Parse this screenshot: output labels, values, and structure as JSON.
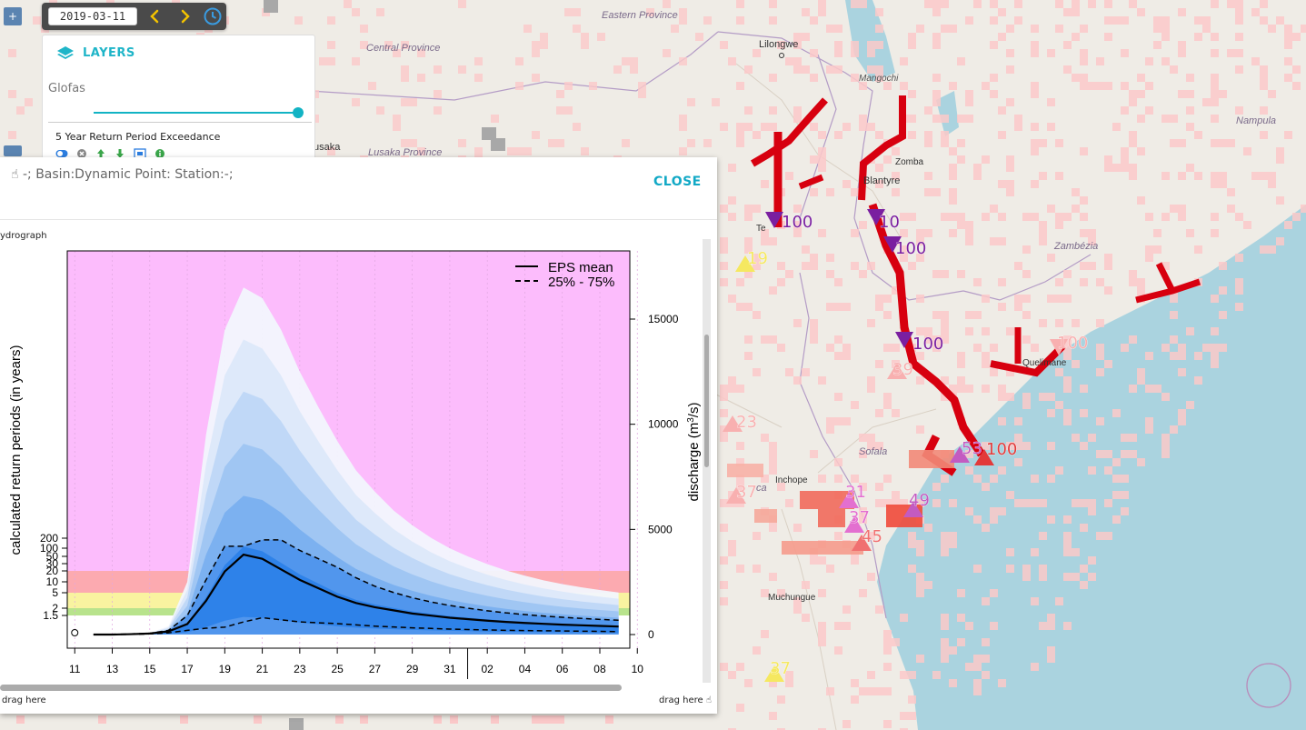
{
  "toolbar": {
    "date": "2019-03-11"
  },
  "layers_panel": {
    "title": "LAYERS",
    "group": "Glofas",
    "slider_value": 1.0,
    "layer_name": "5 Year Return Period Exceedance",
    "tool_icons": [
      "toggle-icon",
      "remove-icon",
      "move-up-icon",
      "move-down-icon",
      "zoom-extent-icon",
      "info-icon"
    ]
  },
  "map": {
    "places": [
      {
        "name": "Lilongwe",
        "key": "lilongwe"
      },
      {
        "name": "Mangochi",
        "key": "mangochi"
      },
      {
        "name": "Eastern Province",
        "key": "eastern"
      },
      {
        "name": "Central Province",
        "key": "central"
      },
      {
        "name": "Lusaka Province",
        "key": "lusaka_prov"
      },
      {
        "name": "usaka",
        "key": "lusaka"
      },
      {
        "name": "Zomba",
        "key": "zomba"
      },
      {
        "name": "Blantyre",
        "key": "blantyre"
      },
      {
        "name": "Nampula",
        "key": "nampula"
      },
      {
        "name": "Zambézia",
        "key": "zambezia"
      },
      {
        "name": "Quelimane",
        "key": "quelimane"
      },
      {
        "name": "Sofala",
        "key": "sofala"
      },
      {
        "name": "Inchope",
        "key": "inchope"
      },
      {
        "name": "Muchungue",
        "key": "muchungue"
      },
      {
        "name": "Te",
        "key": "tete"
      },
      {
        "name": "ca",
        "key": "manica"
      }
    ],
    "markers": [
      {
        "label": "100",
        "color": "#7a1fa0",
        "shape": "down",
        "key": "m1"
      },
      {
        "label": "10",
        "color": "#7a1fa0",
        "shape": "down",
        "key": "m2"
      },
      {
        "label": "100",
        "color": "#7a1fa0",
        "shape": "down",
        "key": "m3"
      },
      {
        "label": "100",
        "color": "#7a1fa0",
        "shape": "down",
        "key": "m4"
      },
      {
        "label": "100",
        "color": "#e23a3a",
        "shape": "up",
        "key": "m5"
      },
      {
        "label": "53",
        "color": "#c35bc1",
        "shape": "up",
        "key": "m6"
      },
      {
        "label": "49",
        "color": "#c35bc1",
        "shape": "up",
        "key": "m7"
      },
      {
        "label": "31",
        "color": "#e36fd0",
        "shape": "up",
        "key": "m8"
      },
      {
        "label": "37",
        "color": "#e36fd0",
        "shape": "up",
        "key": "m9"
      },
      {
        "label": "45",
        "color": "#f07070",
        "shape": "up",
        "key": "m10"
      },
      {
        "label": "19",
        "color": "#f5e860",
        "shape": "up",
        "key": "m11"
      },
      {
        "label": "37",
        "color": "#f5e860",
        "shape": "up",
        "key": "m12"
      },
      {
        "label": "23",
        "color": "#f8b0b0",
        "shape": "up",
        "key": "m13"
      },
      {
        "label": "37",
        "color": "#f8b0b0",
        "shape": "up",
        "key": "m14"
      },
      {
        "label": "39",
        "color": "#f8b0b0",
        "shape": "up",
        "key": "m15"
      },
      {
        "label": "100",
        "color": "#f8b0b0",
        "shape": "down",
        "key": "m16"
      }
    ],
    "colors": {
      "land": "#efece6",
      "sea": "#aad3df",
      "exceed_red": "#d7000f",
      "exceed_light": "#fbc9c9"
    }
  },
  "popup": {
    "title": "-; Basin:Dynamic Point: Station:-;",
    "close_label": "CLOSE",
    "drag_left": "drag here",
    "drag_right": "drag here",
    "corner_label": "ydrograph"
  },
  "chart_data": {
    "type": "area",
    "x_ticks": [
      "11",
      "13",
      "15",
      "17",
      "19",
      "21",
      "23",
      "25",
      "27",
      "29",
      "31",
      "02",
      "04",
      "06",
      "08",
      "10"
    ],
    "ylabel_left": "calculated return periods (in years)",
    "ylabel_right": "discharge (m",
    "ylabel_right_sup": "3",
    "ylabel_right_tail": "/s)",
    "left_ticks": [
      "1.5",
      "2",
      "5",
      "10",
      "20",
      "30",
      "50",
      "100",
      "200"
    ],
    "right_ticks": [
      "0",
      "5000",
      "10000",
      "15000"
    ],
    "right_range": [
      0,
      18000
    ],
    "legend": [
      "EPS mean",
      "25% - 75%"
    ],
    "bands": [
      {
        "name": "above 20 years",
        "color": "#fcbcfc"
      },
      {
        "name": "5-20 years",
        "color": "#fcaab0"
      },
      {
        "name": "2-5 years",
        "color": "#f9f3a0"
      },
      {
        "name": "1.5-2 years",
        "color": "#b8e38c"
      }
    ],
    "days": [
      11,
      12,
      13,
      14,
      15,
      16,
      17,
      18,
      19,
      20,
      21,
      22,
      23,
      24,
      25,
      26,
      27,
      28,
      29,
      30,
      31,
      32,
      33,
      34,
      35,
      36,
      37,
      38,
      39,
      40
    ],
    "mean": [
      null,
      0,
      0,
      20,
      50,
      150,
      500,
      1600,
      3000,
      3800,
      3600,
      3100,
      2600,
      2200,
      1800,
      1500,
      1300,
      1150,
      1000,
      900,
      800,
      730,
      660,
      600,
      550,
      510,
      470,
      440,
      410,
      380
    ],
    "p25": [
      null,
      0,
      0,
      10,
      30,
      80,
      200,
      300,
      350,
      600,
      800,
      700,
      600,
      560,
      520,
      460,
      400,
      360,
      320,
      290,
      260,
      240,
      220,
      200,
      190,
      180,
      170,
      160,
      150,
      140
    ],
    "p75": [
      null,
      0,
      0,
      30,
      60,
      200,
      900,
      2600,
      4200,
      4200,
      4500,
      4500,
      4000,
      3600,
      3200,
      2700,
      2300,
      2000,
      1750,
      1550,
      1380,
      1250,
      1130,
      1030,
      950,
      880,
      820,
      770,
      720,
      680
    ],
    "max": [
      null,
      0,
      0,
      40,
      80,
      400,
      2500,
      9500,
      14500,
      16500,
      16000,
      14500,
      12500,
      10800,
      9200,
      7800,
      6800,
      5900,
      5200,
      4600,
      4100,
      3700,
      3350,
      3050,
      2800,
      2580,
      2400,
      2250,
      2120,
      2000
    ]
  }
}
